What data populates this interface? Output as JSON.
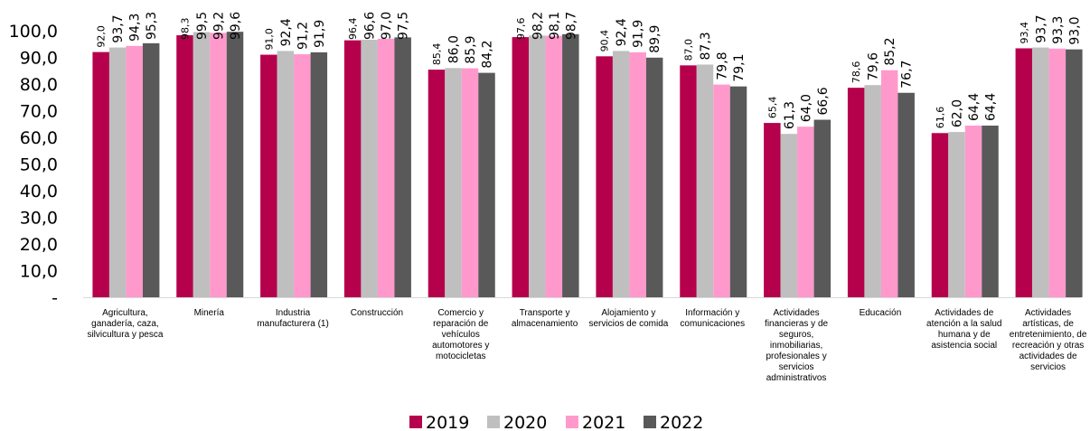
{
  "chart_data": {
    "type": "bar",
    "title": "",
    "xlabel": "",
    "ylabel": "",
    "ylim": [
      0,
      100
    ],
    "y_ticks": [
      "-",
      "10,0",
      "20,0",
      "30,0",
      "40,0",
      "50,0",
      "60,0",
      "70,0",
      "80,0",
      "90,0",
      "100,0"
    ],
    "grid": false,
    "legend_position": "bottom",
    "categories": [
      [
        "Agricultura,",
        "ganadería, caza,",
        "silvicultura y pesca"
      ],
      [
        "Minería"
      ],
      [
        "Industria",
        "manufacturera (1)"
      ],
      [
        "Construcción"
      ],
      [
        "Comercio y",
        "reparación de",
        "vehículos",
        "automotores y",
        "motocicletas"
      ],
      [
        "Transporte y",
        "almacenamiento"
      ],
      [
        "Alojamiento y",
        "servicios de comida"
      ],
      [
        "Información y",
        "comunicaciones"
      ],
      [
        "Actividades",
        "financieras y de",
        "seguros,",
        "inmobiliarias,",
        "profesionales y",
        "servicios",
        "administrativos"
      ],
      [
        "Educación"
      ],
      [
        "Actividades de",
        "atención a la salud",
        "humana y de",
        "asistencia social"
      ],
      [
        "Actividades",
        "artísticas, de",
        "entretenimiento, de",
        "recreación y otras",
        "actividades de",
        "servicios"
      ]
    ],
    "series": [
      {
        "name": "2019",
        "color": "#b5004c",
        "values": [
          92.0,
          98.3,
          91.0,
          96.4,
          85.4,
          97.6,
          90.4,
          87.0,
          65.4,
          78.6,
          61.6,
          93.4
        ],
        "labels": [
          "92,0",
          "98,3",
          "91,0",
          "96,4",
          "85,4",
          "97,6",
          "90,4",
          "87,0",
          "65,4",
          "78,6",
          "61,6",
          "93,4"
        ]
      },
      {
        "name": "2020",
        "color": "#bfbfbf",
        "values": [
          93.7,
          99.5,
          92.4,
          96.6,
          86.0,
          98.2,
          92.4,
          87.3,
          61.3,
          79.6,
          62.0,
          93.7
        ],
        "labels": [
          "93,7",
          "99,5",
          "92,4",
          "96,6",
          "86,0",
          "98,2",
          "92,4",
          "87,3",
          "61,3",
          "79,6",
          "62,0",
          "93,7"
        ]
      },
      {
        "name": "2021",
        "color": "#ff99cc",
        "values": [
          94.3,
          99.2,
          91.2,
          97.0,
          85.9,
          98.1,
          91.9,
          79.8,
          64.0,
          85.2,
          64.4,
          93.3
        ],
        "labels": [
          "94,3",
          "99,2",
          "91,2",
          "97,0",
          "85,9",
          "98,1",
          "91,9",
          "79,8",
          "64,0",
          "85,2",
          "64,4",
          "93,3"
        ]
      },
      {
        "name": "2022",
        "color": "#595959",
        "values": [
          95.3,
          99.6,
          91.9,
          97.5,
          84.2,
          98.7,
          89.9,
          79.1,
          66.6,
          76.7,
          64.4,
          93.0
        ],
        "labels": [
          "95,3",
          "99,6",
          "91,9",
          "97,5",
          "84,2",
          "98,7",
          "89,9",
          "79,1",
          "66,6",
          "76,7",
          "64,4",
          "93,0"
        ]
      }
    ]
  }
}
